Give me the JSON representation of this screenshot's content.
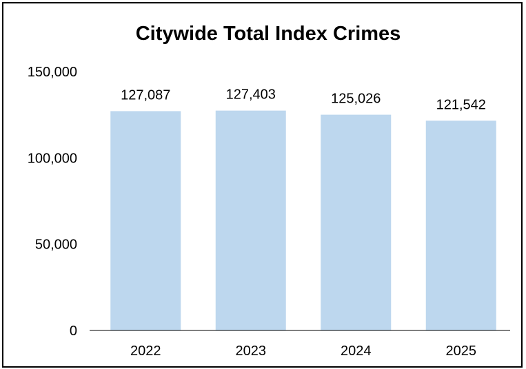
{
  "chart_data": {
    "type": "bar",
    "title": "Citywide Total Index Crimes",
    "xlabel": "",
    "ylabel": "",
    "categories": [
      "2022",
      "2023",
      "2024",
      "2025"
    ],
    "values": [
      127087,
      127403,
      125026,
      121542
    ],
    "data_labels": [
      "127,087",
      "127,403",
      "125,026",
      "121,542"
    ],
    "y_ticks": [
      0,
      50000,
      100000,
      150000
    ],
    "y_tick_labels": [
      "0",
      "50,000",
      "100,000",
      "150,000"
    ],
    "ylim": [
      0,
      150000
    ],
    "grid": false,
    "legend": "none",
    "bar_color": "#bdd7ee",
    "axis_color": "#000000"
  }
}
